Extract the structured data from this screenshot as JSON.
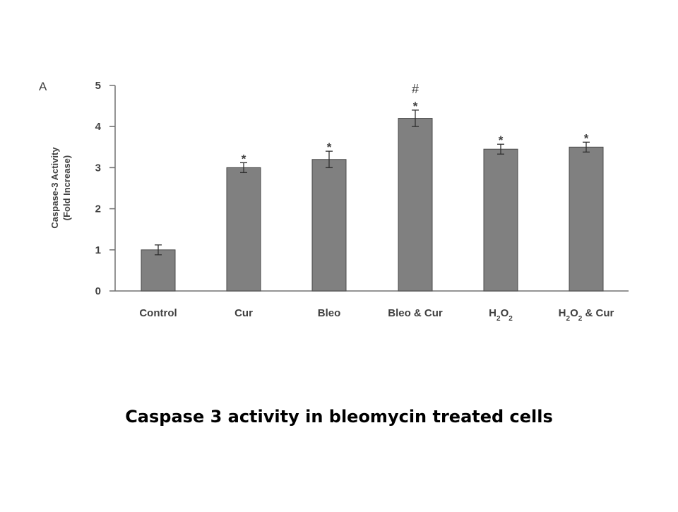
{
  "caption": "Caspase 3 activity in bleomycin treated cells",
  "chart_data": {
    "type": "bar",
    "panel_label": "A",
    "ylabel_lines": [
      "Caspase-3 Activity",
      "(Fold Increase)"
    ],
    "categories": [
      {
        "parts": [
          {
            "t": "Control"
          }
        ]
      },
      {
        "parts": [
          {
            "t": "Cur"
          }
        ]
      },
      {
        "parts": [
          {
            "t": "Bleo"
          }
        ]
      },
      {
        "parts": [
          {
            "t": "Bleo & Cur"
          }
        ]
      },
      {
        "parts": [
          {
            "t": "H"
          },
          {
            "t": "2",
            "sub": true
          },
          {
            "t": "O"
          },
          {
            "t": "2",
            "sub": true
          }
        ]
      },
      {
        "parts": [
          {
            "t": "H"
          },
          {
            "t": "2",
            "sub": true
          },
          {
            "t": "O"
          },
          {
            "t": "2",
            "sub": true
          },
          {
            "t": " & Cur"
          }
        ]
      }
    ],
    "values": [
      1.0,
      3.0,
      3.2,
      4.2,
      3.45,
      3.5
    ],
    "errors": [
      0.12,
      0.12,
      0.2,
      0.2,
      0.12,
      0.12
    ],
    "significance": [
      [],
      [
        "*"
      ],
      [
        "*"
      ],
      [
        "*",
        "#"
      ],
      [
        "*"
      ],
      [
        "*"
      ]
    ],
    "ylim": [
      0,
      5
    ],
    "yticks": [
      0,
      1,
      2,
      3,
      4,
      5
    ],
    "grid": false,
    "bar_color": "#808080",
    "bar_edge_color": "#4a4a4a"
  }
}
